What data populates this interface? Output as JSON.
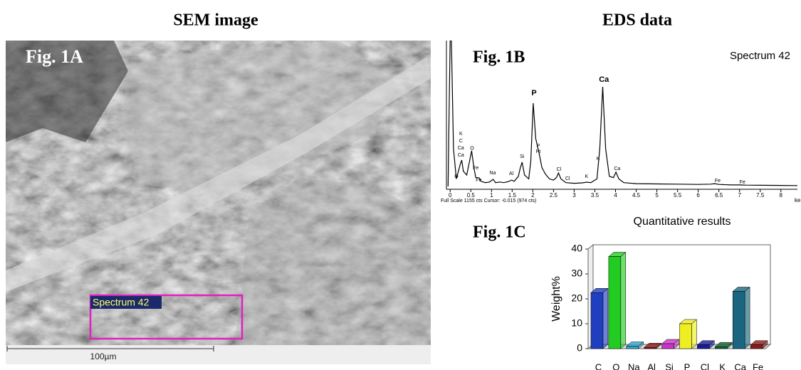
{
  "titles": {
    "left": "SEM image",
    "right": "EDS data"
  },
  "sem": {
    "label": "Fig. 1A",
    "region_label": "Spectrum 42",
    "scale_bar": "100µm"
  },
  "chart_data": [
    {
      "type": "line",
      "panel_label": "Fig. 1B",
      "title": "Spectrum 42",
      "x_label": "ke",
      "footer": "Full Scale 1155 cts Cursor: -0.015  (974 cts)",
      "xlim": [
        -0.09,
        8.4
      ],
      "ylim": [
        0,
        1155
      ],
      "xticks": [
        0,
        0.5,
        1,
        1.5,
        2,
        2.5,
        3,
        3.5,
        4,
        4.5,
        5,
        5.5,
        6,
        6.5,
        7,
        7.5,
        8
      ],
      "x": [
        -0.05,
        0,
        0.03,
        0.08,
        0.15,
        0.2,
        0.25,
        0.28,
        0.32,
        0.4,
        0.47,
        0.52,
        0.57,
        0.62,
        0.7,
        0.75,
        0.85,
        0.95,
        1.04,
        1.1,
        1.2,
        1.3,
        1.4,
        1.49,
        1.55,
        1.65,
        1.7,
        1.74,
        1.8,
        1.9,
        1.95,
        2.01,
        2.07,
        2.15,
        2.22,
        2.3,
        2.4,
        2.5,
        2.57,
        2.62,
        2.68,
        2.8,
        3.0,
        3.2,
        3.31,
        3.4,
        3.55,
        3.62,
        3.69,
        3.76,
        3.85,
        3.95,
        4.01,
        4.08,
        4.2,
        4.5,
        5,
        5.5,
        6,
        6.3,
        6.4,
        6.5,
        6.8,
        7.0,
        7.06,
        7.15,
        7.5,
        8,
        8.4
      ],
      "series": [
        {
          "name": "Spectrum 42",
          "color": "#000000",
          "values": [
            0,
            1155,
            1155,
            300,
            60,
            120,
            180,
            208,
            120,
            90,
            200,
            282,
            160,
            70,
            68,
            40,
            30,
            35,
            56,
            30,
            35,
            30,
            38,
            50,
            40,
            80,
            150,
            192,
            90,
            60,
            200,
            659,
            380,
            265,
            150,
            100,
            60,
            50,
            70,
            107,
            60,
            30,
            25,
            28,
            34,
            30,
            60,
            300,
            789,
            300,
            80,
            70,
            113,
            60,
            30,
            22,
            20,
            18,
            16,
            18,
            22,
            16,
            12,
            12,
            11,
            10,
            9,
            8,
            7
          ]
        }
      ],
      "annotations": [
        {
          "text": "K",
          "x": 0.26,
          "y": 417
        },
        {
          "text": "C",
          "x": 0.26,
          "y": 361
        },
        {
          "text": "Ca",
          "x": 0.26,
          "y": 304
        },
        {
          "text": "Ca",
          "x": 0.26,
          "y": 248
        },
        {
          "text": "O",
          "x": 0.15,
          "y": 79
        },
        {
          "text": "O",
          "x": 0.53,
          "y": 300
        },
        {
          "text": "Fe",
          "x": 0.62,
          "y": 146
        },
        {
          "text": "Fe",
          "x": 0.69,
          "y": 51
        },
        {
          "text": "Na",
          "x": 1.03,
          "y": 107
        },
        {
          "text": "Al",
          "x": 1.48,
          "y": 101
        },
        {
          "text": "Si",
          "x": 1.74,
          "y": 237
        },
        {
          "text": "P",
          "x": 2.03,
          "y": 738,
          "bold": true
        },
        {
          "text": "P",
          "x": 2.13,
          "y": 321
        },
        {
          "text": "Pt",
          "x": 2.13,
          "y": 276
        },
        {
          "text": "Cl",
          "x": 2.63,
          "y": 135
        },
        {
          "text": "Cl",
          "x": 2.84,
          "y": 62
        },
        {
          "text": "K",
          "x": 3.3,
          "y": 79
        },
        {
          "text": "K",
          "x": 3.58,
          "y": 220
        },
        {
          "text": "Ca",
          "x": 3.72,
          "y": 845,
          "bold": true
        },
        {
          "text": "Ca",
          "x": 4.04,
          "y": 141
        },
        {
          "text": "Fe",
          "x": 6.47,
          "y": 45
        },
        {
          "text": "Fe",
          "x": 7.07,
          "y": 34
        }
      ]
    },
    {
      "type": "bar",
      "panel_label": "Fig. 1C",
      "title": "Quantitative results",
      "y_label": "Weight%",
      "categories": [
        "C",
        "O",
        "Na",
        "Al",
        "Si",
        "P",
        "Cl",
        "K",
        "Ca",
        "Fe"
      ],
      "values": [
        22.5,
        37,
        1,
        0.5,
        2,
        10,
        1.5,
        0.8,
        23,
        1.5
      ],
      "colors": [
        "#1f3fbf",
        "#22cc22",
        "#33aacc",
        "#8b1a1a",
        "#cc33cc",
        "#eeee22",
        "#1a1a99",
        "#116633",
        "#1a6680",
        "#8b1a1a"
      ],
      "ylim": [
        0,
        40
      ],
      "yticks": [
        0,
        10,
        20,
        30,
        40
      ]
    }
  ]
}
